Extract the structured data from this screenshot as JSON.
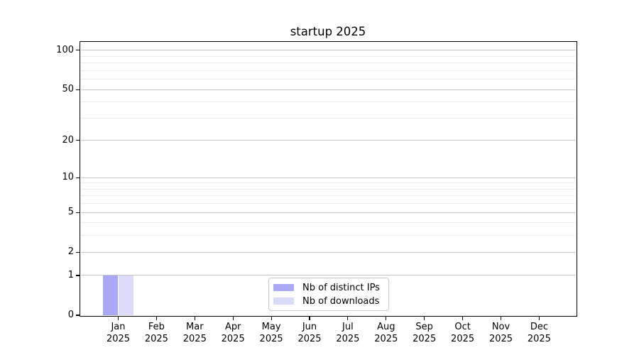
{
  "title": "startup 2025",
  "chart_data": {
    "type": "bar",
    "title": "startup 2025",
    "categories": [
      "Jan",
      "Feb",
      "Mar",
      "Apr",
      "May",
      "Jun",
      "Jul",
      "Aug",
      "Sep",
      "Oct",
      "Nov",
      "Dec"
    ],
    "category_sub_label": "2025",
    "series": [
      {
        "name": "Nb of distinct IPs",
        "color": "#a8a8f5",
        "values": [
          1,
          0,
          0,
          0,
          0,
          0,
          0,
          0,
          0,
          0,
          0,
          0
        ]
      },
      {
        "name": "Nb of downloads",
        "color": "#dcdcfa",
        "values": [
          1,
          0,
          0,
          0,
          0,
          0,
          0,
          0,
          0,
          0,
          0,
          0
        ]
      }
    ],
    "xlabel": "",
    "ylabel": "",
    "yscale": "log1p",
    "ylim": [
      0,
      116
    ],
    "y_major_ticks": [
      0,
      1,
      2,
      5,
      10,
      20,
      50,
      100
    ],
    "y_minor_gridlines": [
      3,
      4,
      6,
      7,
      8,
      9,
      30,
      40,
      60,
      70,
      80,
      90
    ],
    "grid": "horizontal",
    "legend_position": "lower-center",
    "colors": {
      "axis": "#000000",
      "major_grid": "#c6c6c6",
      "minor_grid": "#eaeaea",
      "background": "#ffffff"
    }
  }
}
